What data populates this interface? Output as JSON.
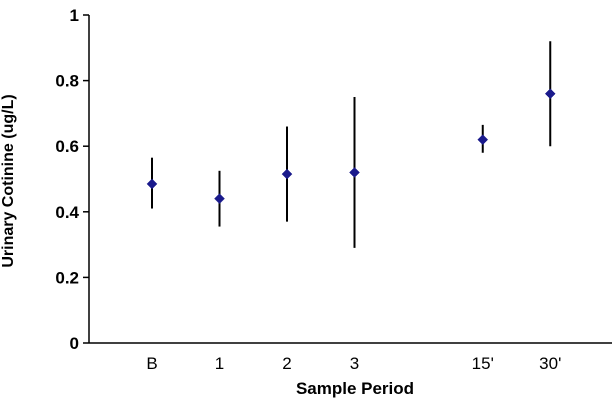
{
  "chart_data": {
    "type": "scatter",
    "title": "",
    "xlabel": "Sample Period",
    "ylabel": "Urinary Cotinine (ug/L)",
    "ylim": [
      0,
      1
    ],
    "yticks": [
      "0",
      "0.2",
      "0.4",
      "0.6",
      "0.8",
      "1"
    ],
    "grid": false,
    "legend": "none",
    "marker_color": "#1a1a8c",
    "errorbar_color": "#000000",
    "categories": [
      "B",
      "1",
      "2",
      "3",
      "15'",
      "30'"
    ],
    "x_positions": [
      1,
      2,
      3,
      4,
      5.9,
      6.9
    ],
    "series": [
      {
        "values": [
          0.485,
          0.44,
          0.515,
          0.52,
          0.62,
          0.76
        ],
        "error_low": [
          0.41,
          0.355,
          0.37,
          0.29,
          0.58,
          0.6
        ],
        "error_high": [
          0.565,
          0.525,
          0.66,
          0.75,
          0.665,
          0.92
        ]
      }
    ]
  }
}
